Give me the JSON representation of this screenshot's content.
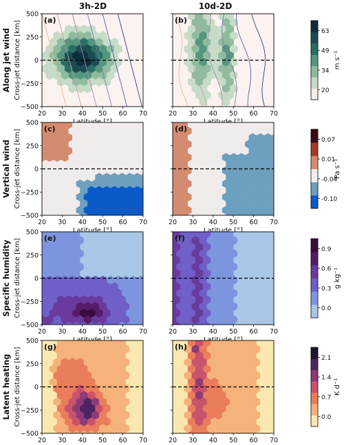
{
  "columns": [
    "3h-2D",
    "10d-2D"
  ],
  "rows": [
    {
      "row_label": "Along jet wind",
      "unit": "m s⁻¹",
      "ticks": [
        "20",
        "34",
        "49",
        "63"
      ],
      "colors": [
        "#f3ece7",
        "#c7dcc8",
        "#8fbc9f",
        "#54977e",
        "#2a6f65",
        "#1b4c52",
        "#0f2e3d"
      ],
      "panel_labels": [
        "(a)",
        "(b)"
      ]
    },
    {
      "row_label": "Vertical wind",
      "unit": "Pa s⁻¹",
      "ticks": [
        "-0.10",
        "-0.04",
        "0.01",
        "0.07"
      ],
      "colors": [
        "#0a5bc9",
        "#6d9fbe",
        "#f1ecec",
        "#d48c70",
        "#a23a22",
        "#3b0a10"
      ],
      "panel_labels": [
        "(c)",
        "(d)"
      ]
    },
    {
      "row_label": "Specific humidity",
      "unit": "g kg⁻¹",
      "ticks": [
        "0.0",
        "0.3",
        "0.6",
        "0.9"
      ],
      "colors": [
        "#a9c7e6",
        "#7d95de",
        "#6f5fc7",
        "#6a3a9e",
        "#561c6b",
        "#3a0d3f"
      ],
      "panel_labels": [
        "(e)",
        "(f)"
      ]
    },
    {
      "row_label": "Latent heating",
      "unit": "K d⁻¹",
      "ticks": [
        "0.0",
        "0.7",
        "1.4",
        "2.1"
      ],
      "colors": [
        "#fbe8b0",
        "#f5b27a",
        "#ea7d5b",
        "#c9536b",
        "#8d3a78",
        "#4e245f",
        "#21142e"
      ],
      "panel_labels": [
        "(g)",
        "(h)"
      ]
    }
  ],
  "axes": {
    "xlabel": "Latitude [°]",
    "ylabel": "Cross-jet distance [km]",
    "xticks": [
      "20",
      "30",
      "40",
      "50",
      "60",
      "70"
    ],
    "yticks": [
      "500",
      "250",
      "0",
      "−250",
      "−500"
    ]
  },
  "chart_data": {
    "type": "heatmap",
    "description_grid": "hexbin fields, latitude 20–70° vs cross-jet distance −500..500 km",
    "xlim": [
      20,
      70
    ],
    "ylim": [
      -500,
      500
    ],
    "xlabel": "Latitude [°]",
    "ylabel": "Cross-jet distance [km]",
    "panels": [
      "(a)",
      "(b)",
      "(c)",
      "(d)",
      "(e)",
      "(f)",
      "(g)",
      "(h)"
    ]
  }
}
